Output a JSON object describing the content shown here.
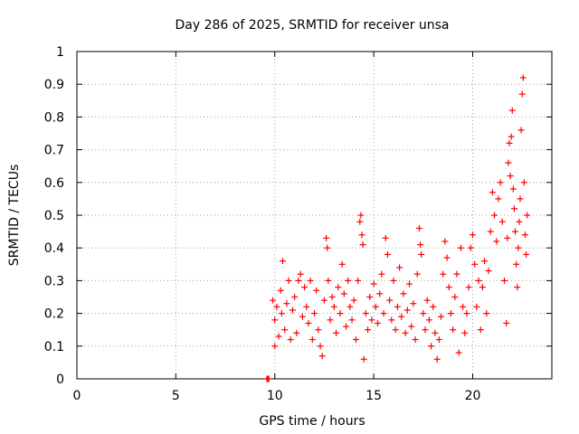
{
  "chart_data": {
    "type": "scatter",
    "title": "Day 286 of 2025, SRMTID for receiver unsa",
    "xlabel": "GPS time / hours",
    "ylabel": "SRMTID / TECUs",
    "xlim": [
      0,
      24
    ],
    "ylim": [
      0,
      1
    ],
    "xticks": [
      0,
      5,
      10,
      15,
      20
    ],
    "yticks": [
      0,
      0.1,
      0.2,
      0.3,
      0.4,
      0.5,
      0.6,
      0.7,
      0.8,
      0.9,
      1
    ],
    "xtick_labels": [
      "0",
      "5",
      "10",
      "15",
      "20"
    ],
    "ytick_labels": [
      "0",
      "0.1",
      "0.2",
      "0.3",
      "0.4",
      "0.5",
      "0.6",
      "0.7",
      "0.8",
      "0.9",
      "1"
    ],
    "grid": true,
    "series": [
      {
        "name": "SRMTID",
        "color": "#ff0000",
        "marker": "plus",
        "points": [
          [
            9.6,
            0.0
          ],
          [
            9.65,
            0.0
          ],
          [
            9.7,
            0.0
          ],
          [
            9.9,
            0.24
          ],
          [
            10.0,
            0.18
          ],
          [
            10.0,
            0.1
          ],
          [
            10.1,
            0.22
          ],
          [
            10.2,
            0.13
          ],
          [
            10.3,
            0.27
          ],
          [
            10.35,
            0.2
          ],
          [
            10.4,
            0.36
          ],
          [
            10.5,
            0.15
          ],
          [
            10.6,
            0.23
          ],
          [
            10.7,
            0.3
          ],
          [
            10.8,
            0.12
          ],
          [
            10.9,
            0.21
          ],
          [
            11.0,
            0.25
          ],
          [
            11.1,
            0.14
          ],
          [
            11.2,
            0.3
          ],
          [
            11.3,
            0.32
          ],
          [
            11.4,
            0.19
          ],
          [
            11.5,
            0.28
          ],
          [
            11.6,
            0.22
          ],
          [
            11.7,
            0.17
          ],
          [
            11.8,
            0.3
          ],
          [
            11.9,
            0.12
          ],
          [
            12.0,
            0.2
          ],
          [
            12.1,
            0.27
          ],
          [
            12.2,
            0.15
          ],
          [
            12.3,
            0.1
          ],
          [
            12.4,
            0.07
          ],
          [
            12.5,
            0.24
          ],
          [
            12.6,
            0.43
          ],
          [
            12.65,
            0.4
          ],
          [
            12.7,
            0.3
          ],
          [
            12.8,
            0.18
          ],
          [
            12.9,
            0.25
          ],
          [
            13.0,
            0.22
          ],
          [
            13.1,
            0.14
          ],
          [
            13.2,
            0.28
          ],
          [
            13.3,
            0.2
          ],
          [
            13.4,
            0.35
          ],
          [
            13.5,
            0.26
          ],
          [
            13.6,
            0.16
          ],
          [
            13.7,
            0.3
          ],
          [
            13.8,
            0.22
          ],
          [
            13.9,
            0.18
          ],
          [
            14.0,
            0.24
          ],
          [
            14.1,
            0.12
          ],
          [
            14.2,
            0.3
          ],
          [
            14.3,
            0.48
          ],
          [
            14.35,
            0.5
          ],
          [
            14.4,
            0.44
          ],
          [
            14.45,
            0.41
          ],
          [
            14.5,
            0.06
          ],
          [
            14.6,
            0.2
          ],
          [
            14.7,
            0.15
          ],
          [
            14.8,
            0.25
          ],
          [
            14.9,
            0.18
          ],
          [
            15.0,
            0.29
          ],
          [
            15.1,
            0.22
          ],
          [
            15.2,
            0.17
          ],
          [
            15.3,
            0.26
          ],
          [
            15.4,
            0.32
          ],
          [
            15.5,
            0.2
          ],
          [
            15.6,
            0.43
          ],
          [
            15.7,
            0.38
          ],
          [
            15.8,
            0.24
          ],
          [
            15.9,
            0.18
          ],
          [
            16.0,
            0.3
          ],
          [
            16.1,
            0.15
          ],
          [
            16.2,
            0.22
          ],
          [
            16.3,
            0.34
          ],
          [
            16.4,
            0.19
          ],
          [
            16.5,
            0.26
          ],
          [
            16.6,
            0.14
          ],
          [
            16.7,
            0.21
          ],
          [
            16.8,
            0.29
          ],
          [
            16.9,
            0.16
          ],
          [
            17.0,
            0.23
          ],
          [
            17.1,
            0.12
          ],
          [
            17.2,
            0.32
          ],
          [
            17.3,
            0.46
          ],
          [
            17.35,
            0.41
          ],
          [
            17.4,
            0.38
          ],
          [
            17.5,
            0.2
          ],
          [
            17.6,
            0.15
          ],
          [
            17.7,
            0.24
          ],
          [
            17.8,
            0.18
          ],
          [
            17.9,
            0.1
          ],
          [
            18.0,
            0.22
          ],
          [
            18.1,
            0.14
          ],
          [
            18.2,
            0.06
          ],
          [
            18.3,
            0.12
          ],
          [
            18.4,
            0.19
          ],
          [
            18.5,
            0.32
          ],
          [
            18.6,
            0.42
          ],
          [
            18.7,
            0.37
          ],
          [
            18.8,
            0.28
          ],
          [
            18.9,
            0.2
          ],
          [
            19.0,
            0.15
          ],
          [
            19.1,
            0.25
          ],
          [
            19.2,
            0.32
          ],
          [
            19.3,
            0.08
          ],
          [
            19.4,
            0.4
          ],
          [
            19.5,
            0.22
          ],
          [
            19.6,
            0.14
          ],
          [
            19.7,
            0.2
          ],
          [
            19.8,
            0.28
          ],
          [
            19.9,
            0.4
          ],
          [
            20.0,
            0.44
          ],
          [
            20.1,
            0.35
          ],
          [
            20.2,
            0.22
          ],
          [
            20.3,
            0.3
          ],
          [
            20.4,
            0.15
          ],
          [
            20.5,
            0.28
          ],
          [
            20.6,
            0.36
          ],
          [
            20.7,
            0.2
          ],
          [
            20.8,
            0.33
          ],
          [
            20.9,
            0.45
          ],
          [
            21.0,
            0.57
          ],
          [
            21.1,
            0.5
          ],
          [
            21.2,
            0.42
          ],
          [
            21.3,
            0.55
          ],
          [
            21.4,
            0.6
          ],
          [
            21.5,
            0.48
          ],
          [
            21.6,
            0.3
          ],
          [
            21.7,
            0.17
          ],
          [
            21.75,
            0.43
          ],
          [
            21.8,
            0.66
          ],
          [
            21.85,
            0.72
          ],
          [
            21.9,
            0.62
          ],
          [
            21.95,
            0.74
          ],
          [
            22.0,
            0.82
          ],
          [
            22.05,
            0.58
          ],
          [
            22.1,
            0.52
          ],
          [
            22.15,
            0.45
          ],
          [
            22.2,
            0.35
          ],
          [
            22.25,
            0.28
          ],
          [
            22.3,
            0.4
          ],
          [
            22.35,
            0.48
          ],
          [
            22.4,
            0.55
          ],
          [
            22.45,
            0.76
          ],
          [
            22.5,
            0.87
          ],
          [
            22.55,
            0.92
          ],
          [
            22.6,
            0.6
          ],
          [
            22.65,
            0.44
          ],
          [
            22.7,
            0.38
          ],
          [
            22.75,
            0.5
          ]
        ]
      }
    ]
  }
}
